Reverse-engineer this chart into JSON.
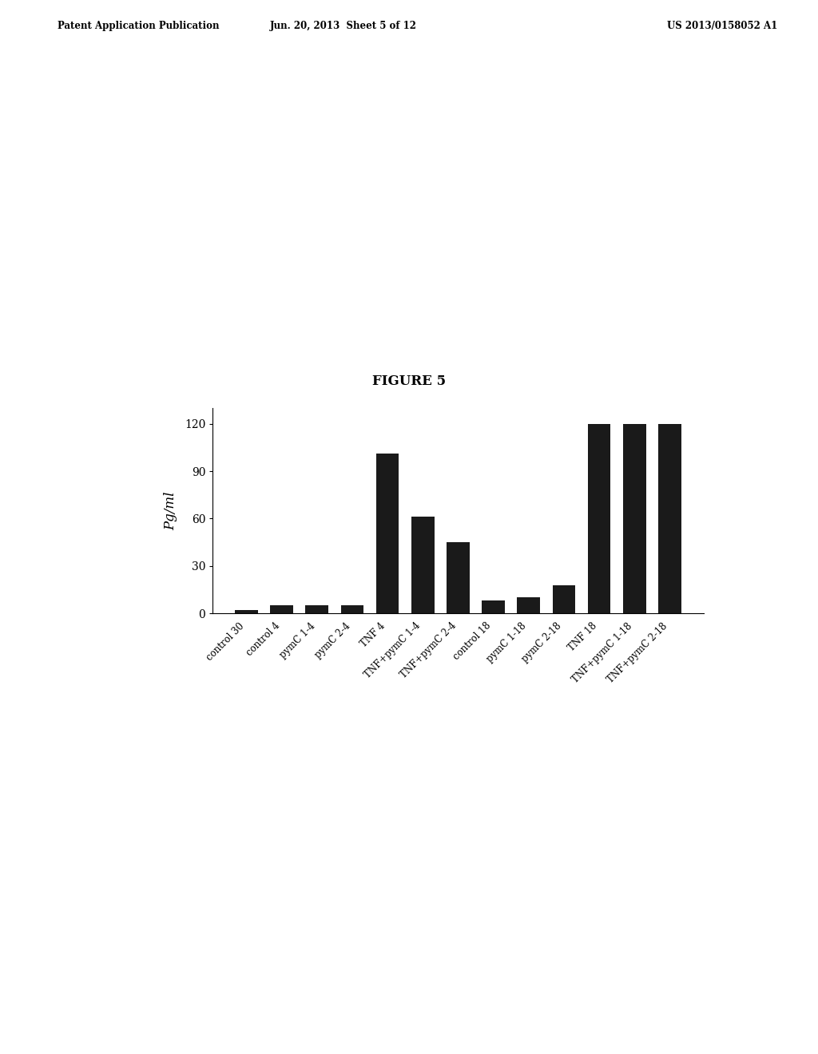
{
  "categories": [
    "control 30",
    "control 4",
    "pymC 1-4",
    "pymC 2-4",
    "TNF 4",
    "TNF+pymC 1-4",
    "TNF+pymC 2-4",
    "control 18",
    "pymC 1-18",
    "pymC 2-18",
    "TNF 18",
    "TNF+pymC 1-18",
    "TNF+pymC 2-18"
  ],
  "values": [
    2,
    5,
    5,
    5,
    101,
    61,
    45,
    8,
    10,
    18,
    120,
    120,
    120
  ],
  "bar_color": "#1a1a1a",
  "ylabel": "Pg/ml",
  "ylim": [
    0,
    130
  ],
  "yticks": [
    0,
    30,
    60,
    90,
    120
  ],
  "figure_title": "FIGURE 5",
  "header_left": "Patent Application Publication",
  "header_center": "Jun. 20, 2013  Sheet 5 of 12",
  "header_right": "US 2013/0158052 A1",
  "bar_width": 0.65,
  "figure_bg": "#ffffff"
}
